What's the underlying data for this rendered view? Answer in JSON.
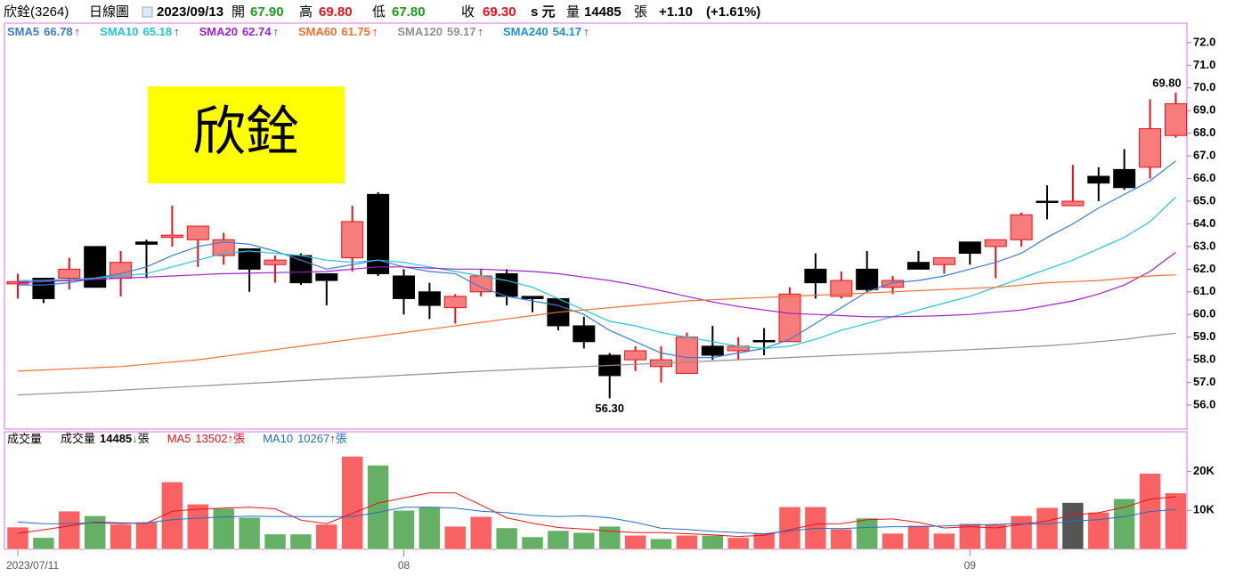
{
  "header": {
    "name": "欣銓(3264)",
    "period": "日線圖",
    "date": "2023/09/13",
    "open_label": "開",
    "open": "67.90",
    "high_label": "高",
    "high": "69.80",
    "low_label": "低",
    "low": "67.80",
    "close_label": "收",
    "close": "69.30",
    "unit": "s 元",
    "volume_label": "量",
    "volume": "14485",
    "volume_unit": "張",
    "change": "+1.10",
    "change_pct": "(+1.61%)"
  },
  "chart_data": [
    {
      "type": "candlestick",
      "stamp": "欣銓",
      "categories": [
        "2023/07/11",
        null,
        null,
        null,
        null,
        null,
        null,
        null,
        null,
        null,
        null,
        null,
        null,
        null,
        null,
        "08",
        null,
        null,
        null,
        null,
        null,
        null,
        null,
        null,
        null,
        null,
        null,
        null,
        null,
        null,
        null,
        null,
        null,
        null,
        null,
        null,
        null,
        "09",
        null,
        null,
        null,
        null,
        null,
        null,
        null,
        null
      ],
      "open": [
        61.35,
        61.6,
        61.6,
        63.0,
        61.6,
        63.2,
        63.4,
        63.3,
        62.6,
        62.9,
        62.2,
        62.6,
        61.8,
        62.5,
        65.3,
        61.7,
        61.0,
        60.3,
        61.0,
        61.8,
        60.8,
        60.7,
        59.5,
        58.2,
        58.0,
        57.7,
        57.4,
        58.6,
        58.4,
        58.85,
        58.8,
        62.0,
        60.8,
        62.0,
        61.2,
        62.3,
        62.2,
        63.2,
        63.0,
        63.3,
        65.0,
        64.8,
        66.1,
        66.4,
        66.5,
        67.9
      ],
      "high": [
        61.8,
        61.6,
        62.5,
        63.0,
        62.8,
        63.3,
        64.8,
        63.9,
        63.6,
        62.9,
        62.6,
        62.7,
        61.8,
        64.8,
        65.4,
        62.0,
        61.4,
        60.9,
        62.0,
        62.0,
        60.8,
        60.7,
        59.9,
        58.3,
        58.6,
        58.6,
        59.2,
        59.5,
        59.0,
        59.4,
        61.2,
        62.7,
        61.9,
        62.8,
        61.7,
        62.8,
        62.5,
        63.2,
        63.3,
        64.5,
        65.7,
        66.6,
        66.5,
        67.3,
        69.5,
        69.8
      ],
      "low": [
        60.7,
        60.5,
        61.1,
        61.2,
        60.8,
        61.6,
        63.0,
        62.1,
        62.2,
        61.0,
        61.4,
        61.3,
        60.4,
        61.9,
        61.7,
        60.0,
        59.8,
        59.6,
        60.8,
        60.4,
        60.1,
        59.3,
        58.5,
        56.3,
        57.5,
        57.0,
        57.4,
        58.0,
        58.0,
        58.2,
        58.8,
        60.7,
        60.7,
        61.0,
        60.9,
        62.0,
        61.8,
        62.2,
        61.6,
        63.0,
        64.2,
        64.8,
        65.0,
        65.5,
        66.0,
        67.8
      ],
      "close": [
        61.45,
        60.7,
        62.0,
        61.2,
        62.3,
        63.1,
        63.5,
        63.9,
        63.3,
        62.0,
        62.4,
        61.4,
        61.5,
        64.1,
        61.8,
        60.7,
        60.4,
        60.8,
        61.7,
        60.8,
        60.7,
        59.5,
        58.8,
        57.3,
        58.4,
        58.0,
        59.0,
        58.2,
        58.6,
        58.8,
        60.9,
        61.4,
        61.5,
        61.1,
        61.5,
        62.0,
        62.5,
        62.7,
        63.3,
        64.4,
        64.95,
        65.0,
        65.8,
        65.6,
        68.2,
        69.3
      ],
      "up_color": "#e8101a",
      "up_fill": "#f77c7c",
      "down_color": "#000000",
      "high_label": "69.80",
      "low_label": "56.30",
      "series": [
        {
          "name": "SMA5",
          "color": "#3a7bd5",
          "last": 66.78,
          "arrow": "↑",
          "values": [
            61.3,
            61.3,
            61.4,
            61.6,
            61.8,
            62.1,
            62.6,
            63.0,
            63.2,
            63.1,
            62.8,
            62.4,
            62.0,
            62.2,
            62.4,
            62.1,
            61.9,
            61.8,
            61.2,
            60.8,
            60.6,
            60.4,
            60.0,
            59.3,
            58.8,
            58.3,
            58.1,
            58.1,
            58.3,
            58.5,
            58.9,
            59.6,
            60.3,
            61.0,
            61.4,
            61.5,
            61.7,
            62.0,
            62.3,
            62.7,
            63.4,
            64.0,
            64.7,
            65.3,
            65.9,
            66.78
          ]
        },
        {
          "name": "SMA10",
          "color": "#22c4d6",
          "last": 65.18,
          "arrow": "↑",
          "values": [
            61.5,
            61.5,
            61.55,
            61.6,
            61.7,
            61.8,
            62.1,
            62.4,
            62.7,
            62.8,
            62.7,
            62.6,
            62.4,
            62.3,
            62.4,
            62.3,
            62.1,
            61.9,
            61.7,
            61.5,
            61.2,
            60.7,
            60.2,
            59.7,
            59.5,
            59.2,
            59.0,
            58.8,
            58.6,
            58.5,
            58.6,
            58.9,
            59.3,
            59.6,
            59.9,
            60.2,
            60.5,
            60.8,
            61.2,
            61.6,
            62.0,
            62.4,
            62.9,
            63.4,
            64.1,
            65.18
          ]
        },
        {
          "name": "SMA20",
          "color": "#a020d0",
          "last": 62.74,
          "arrow": "↑",
          "values": [
            61.4,
            61.45,
            61.5,
            61.55,
            61.6,
            61.65,
            61.7,
            61.75,
            61.8,
            61.82,
            61.85,
            61.87,
            61.9,
            62.0,
            62.1,
            62.1,
            62.05,
            62.0,
            62.0,
            61.95,
            61.9,
            61.8,
            61.65,
            61.5,
            61.3,
            61.05,
            60.8,
            60.55,
            60.35,
            60.2,
            60.05,
            60.0,
            59.95,
            59.9,
            59.9,
            59.92,
            59.95,
            60.0,
            60.1,
            60.2,
            60.4,
            60.6,
            60.9,
            61.3,
            61.9,
            62.74
          ]
        },
        {
          "name": "SMA60",
          "color": "#f07030",
          "last": 61.75,
          "arrow": "↑",
          "values": [
            57.5,
            57.55,
            57.6,
            57.65,
            57.7,
            57.8,
            57.9,
            58.0,
            58.15,
            58.3,
            58.45,
            58.6,
            58.75,
            58.9,
            59.05,
            59.2,
            59.35,
            59.5,
            59.65,
            59.8,
            59.95,
            60.1,
            60.2,
            60.3,
            60.4,
            60.5,
            60.6,
            60.65,
            60.7,
            60.75,
            60.8,
            60.85,
            60.9,
            60.95,
            61.0,
            61.05,
            61.1,
            61.15,
            61.2,
            61.3,
            61.4,
            61.45,
            61.5,
            61.6,
            61.7,
            61.75
          ]
        },
        {
          "name": "SMA120",
          "color": "#909090",
          "last": 59.17,
          "arrow": "↑",
          "values": [
            56.45,
            56.5,
            56.55,
            56.6,
            56.66,
            56.72,
            56.78,
            56.84,
            56.9,
            56.96,
            57.02,
            57.08,
            57.14,
            57.2,
            57.26,
            57.32,
            57.38,
            57.44,
            57.5,
            57.55,
            57.6,
            57.65,
            57.7,
            57.75,
            57.8,
            57.85,
            57.9,
            57.95,
            58.0,
            58.05,
            58.1,
            58.15,
            58.2,
            58.25,
            58.3,
            58.35,
            58.4,
            58.45,
            58.5,
            58.56,
            58.62,
            58.7,
            58.8,
            58.9,
            59.05,
            59.17
          ]
        },
        {
          "name": "SMA240",
          "color": "#2090d0",
          "last": 54.17,
          "arrow": "↑"
        }
      ],
      "ylim": [
        54.94,
        72.86
      ],
      "yticks": [
        {
          "value": 56,
          "label": "56.0"
        },
        {
          "value": 57,
          "label": "57.0"
        },
        {
          "value": 58,
          "label": "58.0"
        },
        {
          "value": 59,
          "label": "59.0"
        },
        {
          "value": 60,
          "label": "60.0"
        },
        {
          "value": 61,
          "label": "61.0"
        },
        {
          "value": 62,
          "label": "62.0"
        },
        {
          "value": 63,
          "label": "63.0"
        },
        {
          "value": 64,
          "label": "64.0"
        },
        {
          "value": 65,
          "label": "65.0"
        },
        {
          "value": 66,
          "label": "66.0"
        },
        {
          "value": 67,
          "label": "67.0"
        },
        {
          "value": 68,
          "label": "68.0"
        },
        {
          "value": 69,
          "label": "69.0"
        },
        {
          "value": 70,
          "label": "70.0"
        },
        {
          "value": 71,
          "label": "71.0"
        },
        {
          "value": 72,
          "label": "72.0"
        }
      ]
    },
    {
      "type": "bar",
      "title": "成交量",
      "name": "成交量",
      "last": 14485,
      "arrow": "↓",
      "unit": "張",
      "arrow_color": "#1a9a1a",
      "values": [
        5700,
        3000,
        9800,
        8600,
        6400,
        7000,
        17300,
        11600,
        10500,
        8200,
        3900,
        3900,
        6400,
        23900,
        21600,
        10000,
        10900,
        5900,
        8400,
        5500,
        3200,
        4800,
        4300,
        5900,
        3600,
        2700,
        3600,
        3600,
        3000,
        4100,
        10900,
        10900,
        5200,
        8000,
        4100,
        6100,
        4100,
        6600,
        6400,
        8600,
        10700,
        12000,
        9500,
        13000,
        19500,
        14485
      ],
      "colors": [
        "#f86262",
        "#64b064",
        "#f86262",
        "#64b064",
        "#f86262",
        "#f86262",
        "#f86262",
        "#f86262",
        "#64b064",
        "#64b064",
        "#64b064",
        "#64b064",
        "#f86262",
        "#f86262",
        "#64b064",
        "#64b064",
        "#64b064",
        "#f86262",
        "#f86262",
        "#64b064",
        "#64b064",
        "#64b064",
        "#64b064",
        "#64b064",
        "#f86262",
        "#64b064",
        "#f86262",
        "#64b064",
        "#f86262",
        "#f86262",
        "#f86262",
        "#f86262",
        "#f86262",
        "#64b064",
        "#f86262",
        "#f86262",
        "#f86262",
        "#f86262",
        "#f86262",
        "#f86262",
        "#f86262",
        "#555555",
        "#f86262",
        "#64b064",
        "#f86262",
        "#f86262"
      ],
      "series": [
        {
          "name": "MA5",
          "color": "#e8101a",
          "last": 13502,
          "arrow": "↑",
          "unit": "張",
          "values": [
            4100,
            5000,
            6000,
            7000,
            6800,
            6700,
            9800,
            10300,
            10600,
            10800,
            10400,
            7500,
            6600,
            9200,
            11900,
            13200,
            14500,
            14500,
            11400,
            8100,
            6700,
            5600,
            5200,
            4700,
            4300,
            4300,
            4000,
            3700,
            3300,
            3600,
            5000,
            6500,
            6600,
            7600,
            7800,
            6900,
            5500,
            5800,
            5500,
            6400,
            7300,
            8800,
            9400,
            10800,
            12900,
            13502
          ]
        },
        {
          "name": "MA10",
          "color": "#2070c0",
          "last": 10267,
          "arrow": "↑",
          "unit": "張",
          "values": [
            7000,
            6600,
            6600,
            6800,
            6600,
            6800,
            7600,
            8000,
            8300,
            8500,
            8400,
            8400,
            8400,
            8400,
            9500,
            10800,
            10800,
            10600,
            9800,
            9400,
            8700,
            8400,
            8600,
            8100,
            6900,
            5400,
            5100,
            4600,
            4300,
            4000,
            4700,
            5400,
            5300,
            5600,
            5800,
            5800,
            6000,
            6200,
            6400,
            6600,
            6500,
            7300,
            7600,
            8400,
            9700,
            10267
          ]
        }
      ],
      "ylim": [
        0,
        30200
      ],
      "yticks": [
        {
          "value": 10000,
          "label": "10K"
        },
        {
          "value": 20000,
          "label": "20K"
        }
      ]
    }
  ]
}
